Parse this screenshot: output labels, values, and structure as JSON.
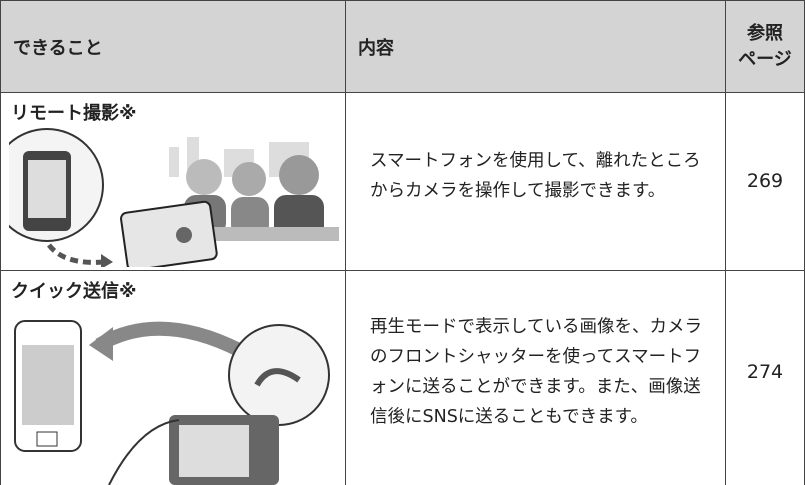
{
  "table": {
    "header": {
      "feature": "できること",
      "content": "内容",
      "reference": {
        "lines": [
          "参照",
          "ページ"
        ]
      }
    },
    "rows": [
      {
        "feature": "リモート撮影※",
        "content": "スマートフォンを使用して、離れたところからカメラを操作して撮影できます。",
        "page": 269
      },
      {
        "feature": "クイック送信※",
        "content": "再生モードで表示している画像を、カメラのフロントシャッターを使ってスマートフォンに送ることができます。また、画像送信後にSNSに送ることもできます。",
        "page": 274
      }
    ]
  }
}
